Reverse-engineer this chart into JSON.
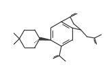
{
  "bg_color": "#ffffff",
  "line_color": "#3a3a3a",
  "line_width": 0.9,
  "figsize": [
    1.54,
    1.06
  ],
  "dpi": 100
}
